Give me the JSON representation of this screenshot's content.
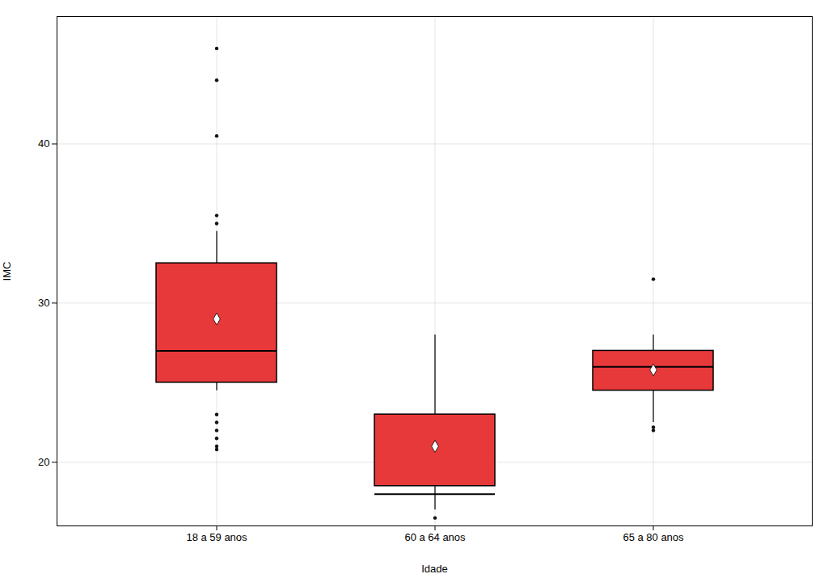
{
  "chart_data": {
    "type": "box",
    "xlabel": "Idade",
    "ylabel": "IMC",
    "categories": [
      "18 a 59 anos",
      "60 a 64 anos",
      "65 a 80 anos"
    ],
    "boxes": [
      {
        "q1": 25.0,
        "median": 27.0,
        "q3": 32.5,
        "mean": 29.0,
        "whisker_top": 34.5,
        "whisker_bottom": 24.5,
        "outliers": [
          40.5,
          44.0,
          46.0,
          35.5,
          35.0,
          23.0,
          22.5,
          22.0,
          21.5,
          21.0,
          20.8
        ]
      },
      {
        "q1": 18.5,
        "median": 18.0,
        "q3": 23.0,
        "mean": 21.0,
        "whisker_top": 28.0,
        "whisker_bottom": 17.0,
        "outliers": [
          16.5
        ]
      },
      {
        "q1": 24.5,
        "median": 26.0,
        "q3": 27.0,
        "mean": 25.8,
        "whisker_top": 28.0,
        "whisker_bottom": 22.5,
        "outliers": [
          31.5,
          22.2,
          22.0
        ]
      }
    ],
    "color": "#e8393a",
    "marker": "diamond",
    "ylim": [
      16.0,
      48.0
    ],
    "yticks": [
      20,
      30,
      40
    ],
    "grid": true
  }
}
